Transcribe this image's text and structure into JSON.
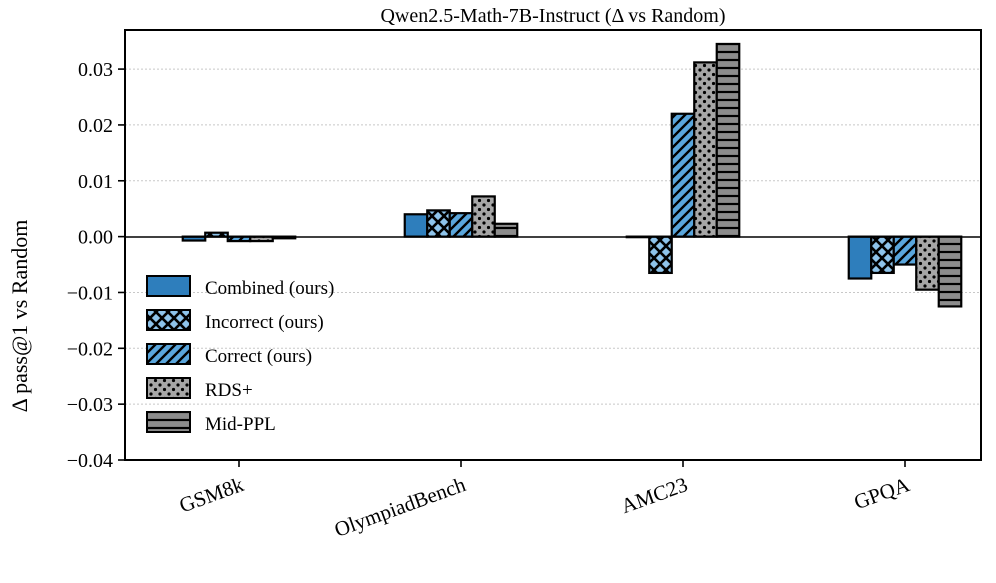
{
  "chart_data": {
    "type": "bar",
    "title": "Qwen2.5-Math-7B-Instruct (Δ vs Random)",
    "xlabel": "",
    "ylabel": "Δ pass@1 vs Random",
    "ylim": [
      -0.04,
      0.037
    ],
    "yticks": [
      -0.04,
      -0.03,
      -0.02,
      -0.01,
      0.0,
      0.01,
      0.02,
      0.03
    ],
    "ytick_labels": [
      "−0.04",
      "−0.03",
      "−0.02",
      "−0.01",
      "0.00",
      "0.01",
      "0.02",
      "0.03"
    ],
    "grid": true,
    "legend_position": "center-left",
    "categories": [
      "GSM8k",
      "OlympiadBench",
      "AMC23",
      "GPQA"
    ],
    "series": [
      {
        "name": "Combined (ours)",
        "color": "#2e7ebc",
        "pattern": "solid",
        "values": [
          -0.0007,
          0.004,
          -0.0001,
          -0.0075
        ]
      },
      {
        "name": "Incorrect (ours)",
        "color": "#8ec3ea",
        "pattern": "crosshatch",
        "values": [
          0.0007,
          0.0047,
          -0.0065,
          -0.0065
        ]
      },
      {
        "name": "Correct (ours)",
        "color": "#5aa6dc",
        "pattern": "diagonal",
        "values": [
          -0.0008,
          0.0042,
          0.022,
          -0.005
        ]
      },
      {
        "name": "RDS+",
        "color": "#a6a6a6",
        "pattern": "dots",
        "values": [
          -0.0008,
          0.0072,
          0.0312,
          -0.0095
        ]
      },
      {
        "name": "Mid-PPL",
        "color": "#8c8c8c",
        "pattern": "horizontal",
        "values": [
          -0.0003,
          0.0023,
          0.0345,
          -0.0125
        ]
      }
    ]
  }
}
